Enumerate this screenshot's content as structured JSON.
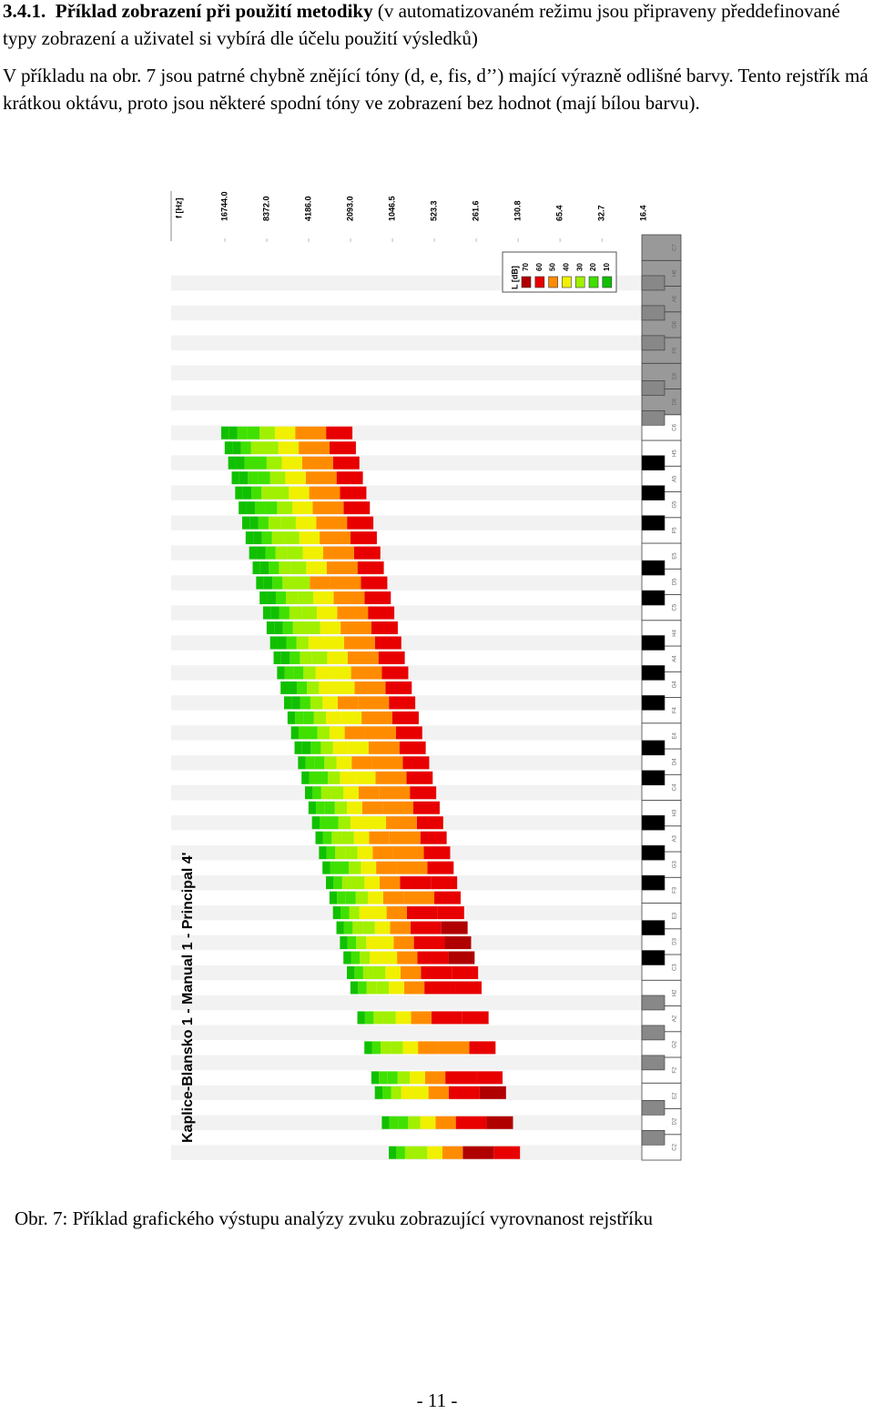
{
  "header": {
    "number": "3.4.1.",
    "title": "Příklad zobrazení při použití metodiky",
    "note": "(v automatizovaném režimu jsou připraveny předdefinované typy zobrazení a uživatel si vybírá dle účelu použití výsledků)"
  },
  "paragraph": "V příkladu na obr. 7 jsou patrné chybně znějící tóny (d, e, fis, d’’) mající výrazně odlišné barvy. Tento rejstřík má krátkou oktávu, proto jsou některé spodní tóny ve zobrazení bez hodnot (mají bílou barvu).",
  "chart_data": {
    "type": "heatmap",
    "title": "Kaplice-Blansko 1 - Manual 1 - Principal 4'",
    "xlabel": "f [Hz]",
    "xscale": "log",
    "xlim": [
      16.4,
      16744
    ],
    "xticks": [
      {
        "value": 16744,
        "label": "16744.0"
      },
      {
        "value": 8372,
        "label": "8372.0"
      },
      {
        "value": 4186,
        "label": "4186.0"
      },
      {
        "value": 2093,
        "label": "2093.0"
      },
      1046.5,
      523.3,
      261.6,
      130.8,
      65.4,
      32.7,
      16.4
    ],
    "legend_title": "L [dB]",
    "levels": [
      70,
      60,
      50,
      40,
      30,
      20,
      10
    ],
    "level_colors": [
      "#b00000",
      "#e80000",
      "#ff8c00",
      "#f0f000",
      "#a0f000",
      "#40e000",
      "#10c000"
    ],
    "keys": [
      "C2",
      null,
      "D2",
      null,
      "E2",
      "F2",
      null,
      "G2",
      null,
      "A2",
      null,
      "H2",
      "C3",
      null,
      "D3",
      null,
      "E3",
      "F3",
      null,
      "G3",
      null,
      "A3",
      null,
      "H3",
      "C4",
      null,
      "D4",
      null,
      "E4",
      "F4",
      null,
      "G4",
      null,
      "A4",
      null,
      "H4",
      "C5",
      null,
      "D5",
      null,
      "E5",
      "F5",
      null,
      "G5",
      null,
      "A5",
      null,
      "H5",
      "C6",
      null,
      "D6",
      null,
      "E6",
      "F6",
      null,
      "G6",
      null,
      "A6",
      null,
      "H6",
      "C7"
    ],
    "rows": [
      [
        66,
        70,
        52,
        45,
        38,
        30,
        25,
        18
      ],
      null,
      [
        70,
        65,
        58,
        44,
        36,
        28,
        22,
        15
      ],
      null,
      [
        72,
        66,
        55,
        48,
        40,
        32,
        24,
        16
      ],
      [
        65,
        60,
        56,
        42,
        35,
        28,
        20,
        14
      ],
      null,
      [
        64,
        58,
        50,
        44,
        38,
        30,
        22,
        15
      ],
      null,
      [
        63,
        60,
        52,
        46,
        38,
        31,
        24,
        17
      ],
      null,
      [
        64,
        61,
        53,
        45,
        39,
        30,
        23,
        16
      ],
      [
        66,
        60,
        52,
        47,
        38,
        32,
        24,
        17
      ],
      [
        71,
        64,
        55,
        46,
        40,
        31,
        25,
        18
      ],
      [
        72,
        68,
        58,
        48,
        41,
        33,
        26,
        19
      ],
      [
        70,
        62,
        54,
        45,
        38,
        30,
        23,
        16
      ],
      [
        63,
        60,
        56,
        47,
        40,
        32,
        25,
        18
      ],
      [
        65,
        58,
        52,
        44,
        37,
        29,
        22,
        15
      ],
      [
        64,
        60,
        53,
        46,
        38,
        31,
        24,
        17
      ],
      [
        63,
        57,
        50,
        43,
        36,
        28,
        21,
        14
      ],
      [
        64,
        59,
        51,
        44,
        37,
        30,
        23,
        16
      ],
      [
        63,
        58,
        52,
        45,
        38,
        31,
        24,
        17
      ],
      [
        62,
        56,
        49,
        42,
        35,
        28,
        21,
        14
      ],
      [
        64,
        58,
        50,
        43,
        36,
        29,
        22,
        15
      ],
      [
        63,
        57,
        52,
        44,
        37,
        30,
        23,
        16
      ],
      [
        62,
        56,
        48,
        41,
        34,
        27,
        20,
        13
      ],
      [
        63,
        55,
        58,
        42,
        35,
        28,
        21,
        14
      ],
      [
        62,
        54,
        47,
        40,
        33,
        26,
        19,
        12
      ],
      [
        61,
        56,
        53,
        41,
        34,
        27,
        20,
        13
      ],
      [
        62,
        55,
        48,
        41,
        34,
        27,
        20,
        13
      ],
      [
        60,
        52,
        56,
        40,
        33,
        26,
        19,
        12
      ],
      [
        61,
        54,
        47,
        40,
        33,
        26,
        19,
        12
      ],
      [
        62,
        55,
        48,
        41,
        34,
        27,
        20,
        13
      ],
      [
        61,
        53,
        46,
        39,
        32,
        25,
        18,
        11
      ],
      [
        60,
        54,
        47,
        40,
        33,
        26,
        19,
        12
      ],
      [
        61,
        52,
        45,
        38,
        31,
        24,
        17,
        11
      ],
      [
        60,
        53,
        46,
        39,
        32,
        25,
        18,
        11
      ],
      [
        61,
        52,
        45,
        38,
        31,
        24,
        17,
        11
      ],
      [
        60,
        56,
        50,
        37,
        30,
        23,
        16,
        11
      ],
      [
        60,
        52,
        44,
        37,
        30,
        23,
        16,
        11
      ],
      [
        61,
        53,
        45,
        38,
        31,
        24,
        17,
        11
      ],
      [
        60,
        51,
        44,
        37,
        30,
        23,
        16,
        11
      ],
      [
        61,
        52,
        45,
        38,
        31,
        24,
        17,
        11
      ],
      [
        60,
        51,
        43,
        36,
        29,
        22,
        15,
        11
      ],
      [
        60,
        52,
        44,
        37,
        30,
        23,
        16,
        11
      ],
      [
        61,
        51,
        43,
        36,
        29,
        22,
        15,
        11
      ],
      [
        60,
        50,
        43,
        36,
        29,
        22,
        15,
        11
      ],
      [
        61,
        51,
        44,
        37,
        30,
        23,
        16,
        11
      ],
      [
        60,
        50,
        42,
        35,
        28,
        21,
        14,
        11
      ],
      null,
      null,
      null,
      null,
      null,
      null,
      null,
      null,
      null,
      null,
      null,
      null
    ]
  },
  "caption": "Obr. 7: Příklad grafického výstupu analýzy zvuku zobrazující vyrovnanost rejstříku",
  "page_number": "- 11 -"
}
